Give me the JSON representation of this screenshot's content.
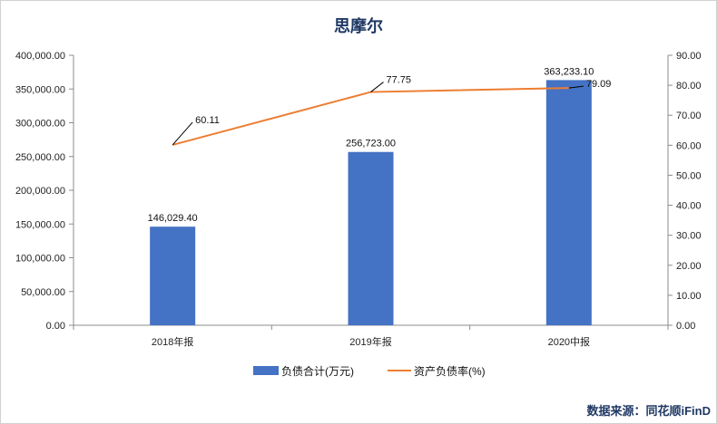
{
  "chart_data": {
    "type": "bar",
    "title": "思摩尔",
    "categories": [
      "2018年报",
      "2019年报",
      "2020中报"
    ],
    "series": [
      {
        "name": "负债合计(万元)",
        "type": "bar",
        "axis": "left",
        "color": "#4472c4",
        "values": [
          146029.4,
          256723.0,
          363233.1
        ],
        "labels": [
          "146,029.40",
          "256,723.00",
          "363,233.10"
        ]
      },
      {
        "name": "资产负债率(%)",
        "type": "line",
        "axis": "right",
        "color": "#ed7d31",
        "values": [
          60.11,
          77.75,
          79.09
        ],
        "labels": [
          "60.11",
          "77.75",
          "79.09"
        ]
      }
    ],
    "y_left": {
      "ylim": [
        0,
        400000
      ],
      "ticks": [
        "0.00",
        "50,000.00",
        "100,000.00",
        "150,000.00",
        "200,000.00",
        "250,000.00",
        "300,000.00",
        "350,000.00",
        "400,000.00"
      ]
    },
    "y_right": {
      "ylim": [
        0,
        90
      ],
      "ticks": [
        "0.00",
        "10.00",
        "20.00",
        "30.00",
        "40.00",
        "50.00",
        "60.00",
        "70.00",
        "80.00",
        "90.00"
      ]
    },
    "grid": false,
    "legend": "bottom"
  },
  "footer": {
    "source": "数据来源：同花顺iFinD"
  }
}
